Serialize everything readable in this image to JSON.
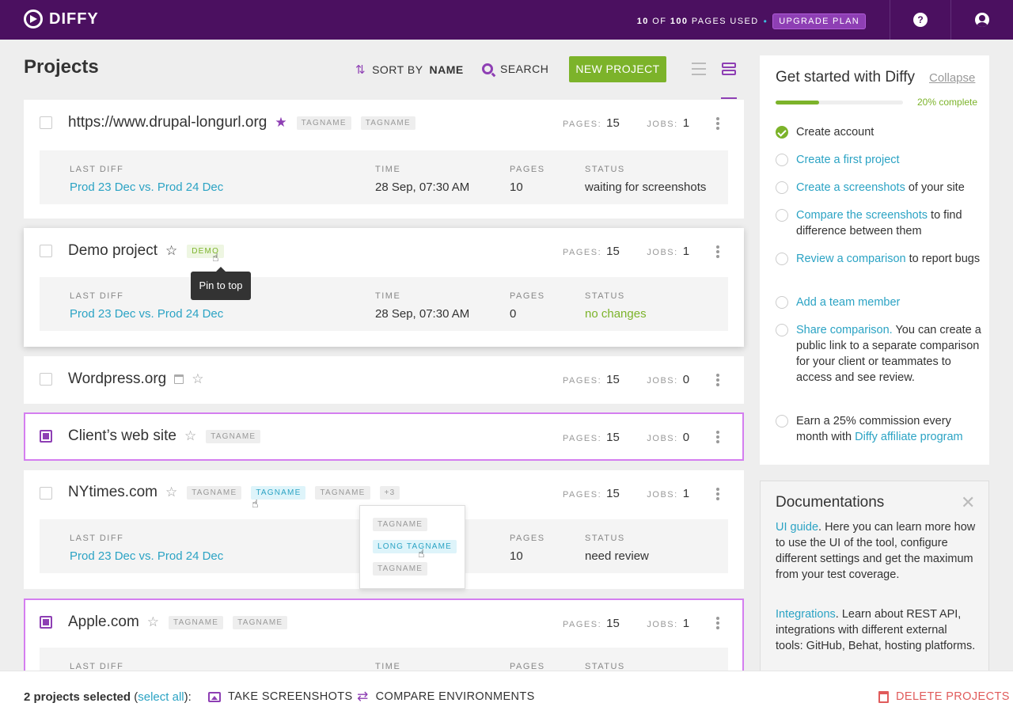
{
  "header": {
    "logo": "DIFFY",
    "usage_used": "10",
    "usage_of": "OF",
    "usage_total": "100",
    "usage_label": "PAGES USED",
    "upgrade": "UPGRADE PLAN",
    "help": "?"
  },
  "toolbar": {
    "title": "Projects",
    "sort_prefix": "SORT BY",
    "sort_field": "NAME",
    "search": "SEARCH",
    "new_project": "NEW PROJECT"
  },
  "meta_labels": {
    "pages": "PAGES:",
    "jobs": "JOBS:"
  },
  "diff_labels": {
    "last_diff": "LAST DIFF",
    "time": "TIME",
    "pages": "PAGES",
    "status": "STATUS"
  },
  "projects": [
    {
      "name": "https://www.drupal-longurl.org",
      "tags": [
        "TAGNAME",
        "TAGNAME"
      ],
      "pages": "15",
      "jobs": "1",
      "last_diff": "Prod 23 Dec vs. Prod 24 Dec",
      "time": "28 Sep, 07:30 AM",
      "diff_pages": "10",
      "status": "waiting for screenshots"
    },
    {
      "name": "Demo project",
      "tags": [
        "DEMO"
      ],
      "pages": "15",
      "jobs": "1",
      "last_diff": "Prod 23 Dec vs. Prod 24 Dec",
      "time": "28 Sep, 07:30 AM",
      "diff_pages": "0",
      "status": "no changes"
    },
    {
      "name": "Wordpress.org",
      "pages": "15",
      "jobs": "0"
    },
    {
      "name": "Client’s web site",
      "tags": [
        "TAGNAME"
      ],
      "pages": "15",
      "jobs": "0"
    },
    {
      "name": "NYtimes.com",
      "tags": [
        "TAGNAME",
        "TAGNAME",
        "TAGNAME",
        "+3"
      ],
      "pages": "15",
      "jobs": "1",
      "last_diff": "Prod 23 Dec vs. Prod 24 Dec",
      "diff_pages": "10",
      "status": "need review"
    },
    {
      "name": "Apple.com",
      "tags": [
        "TAGNAME",
        "TAGNAME"
      ],
      "pages": "15",
      "jobs": "1"
    }
  ],
  "tooltip": "Pin to top",
  "tag_popover": [
    "TAGNAME",
    "LONG TAGNAME",
    "TAGNAME"
  ],
  "get_started": {
    "title": "Get started with Diffy",
    "collapse": "Collapse",
    "progress_pct": 20,
    "progress_label": "20% complete",
    "steps": [
      {
        "link": "",
        "text": "Create account",
        "done": true
      },
      {
        "link": "Create a first project",
        "text": ""
      },
      {
        "link": "Create a screenshots",
        "text": " of your site"
      },
      {
        "link": "Compare the screenshots",
        "text": " to find difference between them"
      },
      {
        "link": "Review a comparison",
        "text": " to report bugs"
      },
      {
        "link": "Add a team member",
        "text": ""
      },
      {
        "link": "Share comparison.",
        "text": " You can create a public link to a separate comparison for your client or teammates to access and see review."
      },
      {
        "pre": "Earn a 25% commission every month with ",
        "link": "Diffy affiliate program"
      }
    ]
  },
  "docs": {
    "title": "Documentations",
    "items": [
      {
        "link": "UI guide",
        "text": ". Here you can learn more how to use the UI of the tool, configure different settings and get the maximum from your test coverage."
      },
      {
        "link": "Integrations",
        "text": ". Learn about REST API, integrations with different external tools: GitHub, Behat, hosting platforms."
      }
    ]
  },
  "footer": {
    "selected": "2 projects selected",
    "open_paren": " (",
    "select_all": "select all",
    "close_paren": "):",
    "take_screenshots": "TAKE SCREENSHOTS",
    "compare": "COMPARE ENVIRONMENTS",
    "delete": "DELETE PROJECTS"
  },
  "colors": {
    "brand": "#4b1060",
    "accent": "#8e3fb4",
    "green": "#7cb32a",
    "link": "#2ba3c4",
    "danger": "#e05b5b"
  }
}
